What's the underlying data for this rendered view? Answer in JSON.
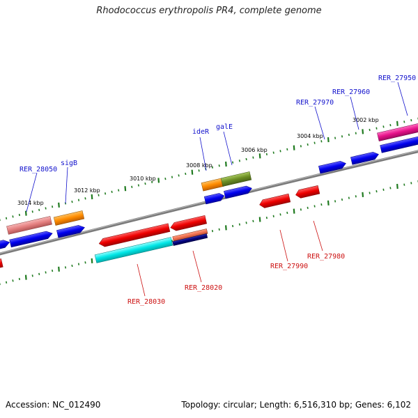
{
  "title": "Rhodococcus erythropolis PR4, complete genome",
  "footer": {
    "accession": "Accession: NC_012490",
    "summary": "Topology: circular; Length: 6,516,310 bp; Genes: 6,102"
  },
  "colors": {
    "backbone": "#7a7a7a",
    "tick": "#1f7a1f",
    "forward_label": "#1010cc",
    "reverse_label": "#cc1010"
  },
  "kbp_labels": [
    "3014 kbp",
    "3012 kbp",
    "3010 kbp",
    "3008 kbp",
    "3006 kbp",
    "3004 kbp",
    "3002 kbp"
  ],
  "forward_labels": [
    "RER_28050",
    "sigB",
    "ideR",
    "galE",
    "RER_27970",
    "RER_27960",
    "RER_27950"
  ],
  "reverse_labels": [
    "RER_28030",
    "RER_28020",
    "RER_27990",
    "RER_27980"
  ],
  "feature_colors": {
    "salmon": "#e58080",
    "orange": "#ff8c00",
    "blue": "#0000ee",
    "red": "#ee0000",
    "cyan": "#00e6e6",
    "navy": "#00007a",
    "olive": "#6b8e23",
    "magenta": "#e6128a",
    "light_red": "#f07050"
  }
}
